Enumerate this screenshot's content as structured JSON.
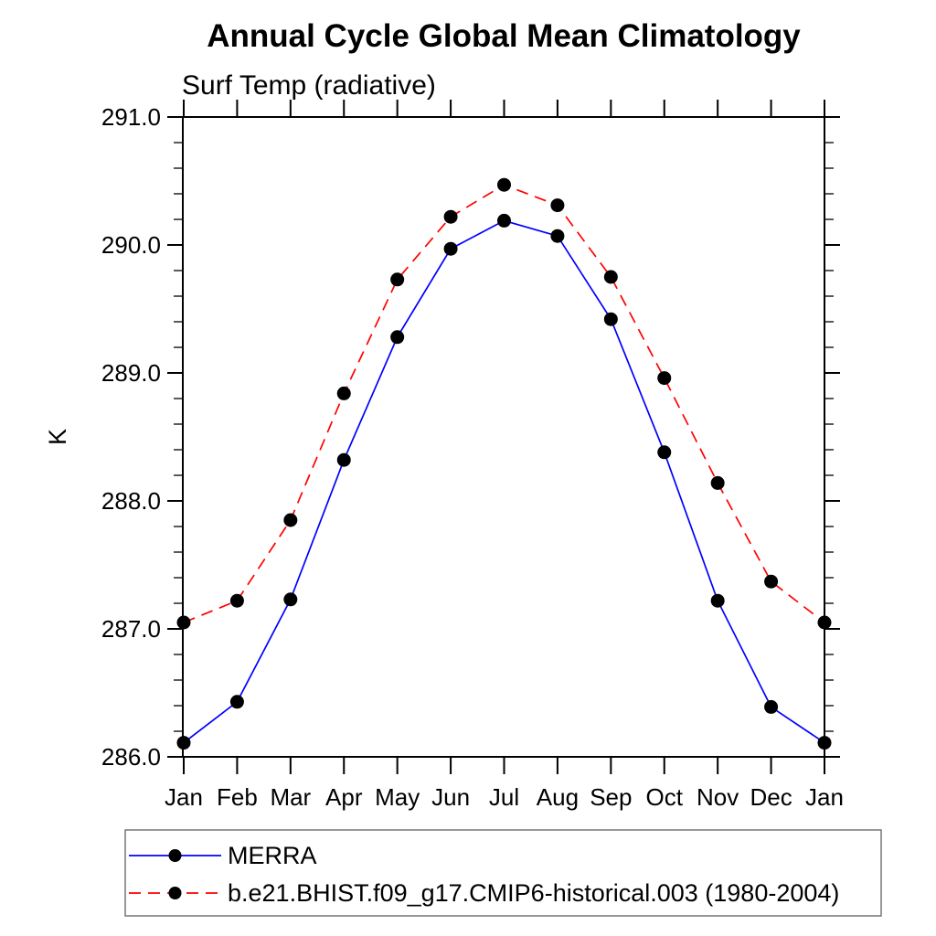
{
  "chart_data": {
    "type": "line",
    "title": "Annual Cycle Global Mean Climatology",
    "subtitle": "Surf Temp (radiative)",
    "xlabel": "",
    "ylabel": "K",
    "x_categories": [
      "Jan",
      "Feb",
      "Mar",
      "Apr",
      "May",
      "Jun",
      "Jul",
      "Aug",
      "Sep",
      "Oct",
      "Nov",
      "Dec",
      "Jan"
    ],
    "ylim": [
      286.0,
      291.0
    ],
    "yticks": [
      {
        "v": 286.0,
        "label": "286.0"
      },
      {
        "v": 287.0,
        "label": "287.0"
      },
      {
        "v": 288.0,
        "label": "288.0"
      },
      {
        "v": 289.0,
        "label": "289.0"
      },
      {
        "v": 290.0,
        "label": "290.0"
      },
      {
        "v": 291.0,
        "label": "291.0"
      }
    ],
    "y_minor_tick_step": 0.2,
    "grid": false,
    "axis_color": "#000000",
    "legend": {
      "position": "below-plot-left",
      "border": true,
      "border_color": "#777777"
    },
    "series": [
      {
        "name": "MERRA",
        "color": "#0000ff",
        "line_style": "solid",
        "marker": "filled-circle",
        "marker_color": "#000000",
        "values": [
          286.11,
          286.43,
          287.23,
          288.32,
          289.28,
          289.97,
          290.19,
          290.07,
          289.42,
          288.38,
          287.22,
          286.39,
          286.11
        ]
      },
      {
        "name": "b.e21.BHIST.f09_g17.CMIP6-historical.003 (1980-2004)",
        "color": "#ff0000",
        "line_style": "dashed",
        "marker": "filled-circle",
        "marker_color": "#000000",
        "values": [
          287.05,
          287.22,
          287.85,
          288.84,
          289.73,
          290.22,
          290.47,
          290.31,
          289.75,
          288.96,
          288.14,
          287.37,
          287.05
        ]
      }
    ]
  }
}
